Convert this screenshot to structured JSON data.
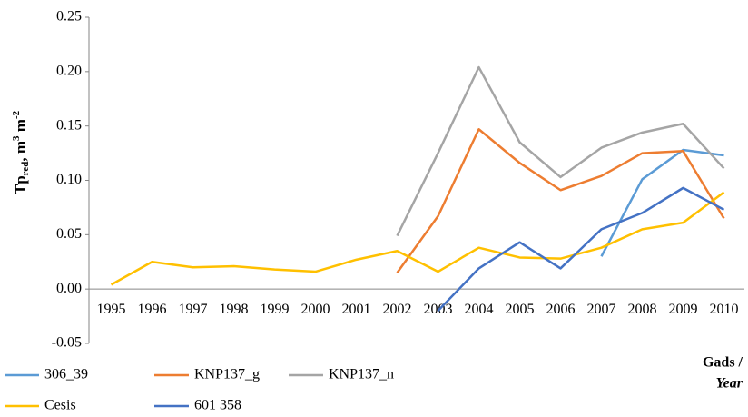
{
  "chart_data": {
    "type": "line",
    "y_label": [
      "Tp",
      "red",
      ", m",
      "3",
      " m",
      "-2"
    ],
    "x_label": [
      "Gads /",
      "Year"
    ],
    "categories": [
      "1995",
      "1996",
      "1997",
      "1998",
      "1999",
      "2000",
      "2001",
      "2002",
      "2003",
      "2004",
      "2005",
      "2006",
      "2007",
      "2008",
      "2009",
      "2010"
    ],
    "series": [
      {
        "name": "306_39",
        "color": "#5b9bd5",
        "values": [
          null,
          null,
          null,
          null,
          null,
          null,
          null,
          null,
          null,
          null,
          null,
          null,
          0.03,
          0.101,
          0.128,
          0.123
        ]
      },
      {
        "name": "KNP137_g",
        "color": "#ed7d31",
        "values": [
          null,
          null,
          null,
          null,
          null,
          null,
          null,
          0.015,
          0.067,
          0.147,
          0.116,
          0.091,
          0.104,
          0.125,
          0.127,
          0.065
        ]
      },
      {
        "name": "KNP137_n",
        "color": "#a5a5a5",
        "values": [
          null,
          null,
          null,
          null,
          null,
          null,
          null,
          0.049,
          0.125,
          0.204,
          0.135,
          0.103,
          0.13,
          0.144,
          0.152,
          0.111
        ]
      },
      {
        "name": "Cesis",
        "color": "#ffc000",
        "values": [
          0.004,
          0.025,
          0.02,
          0.021,
          0.018,
          0.016,
          0.027,
          0.035,
          0.016,
          0.038,
          0.029,
          0.028,
          0.038,
          0.055,
          0.061,
          0.089
        ]
      },
      {
        "name": "601 358",
        "color": "#4472c4",
        "values": [
          null,
          null,
          null,
          null,
          null,
          null,
          null,
          null,
          -0.02,
          0.019,
          0.043,
          0.019,
          0.055,
          0.07,
          0.093,
          0.073
        ]
      }
    ],
    "ylim": [
      -0.05,
      0.25
    ],
    "yticks": [
      -0.05,
      {
        "value": 0,
        "label": "0.00"
      },
      0.05,
      {
        "value": 0.1,
        "label": "0.10"
      },
      0.15,
      {
        "value": 0.2,
        "label": "0.20"
      },
      0.25
    ],
    "legend": "bottom"
  }
}
